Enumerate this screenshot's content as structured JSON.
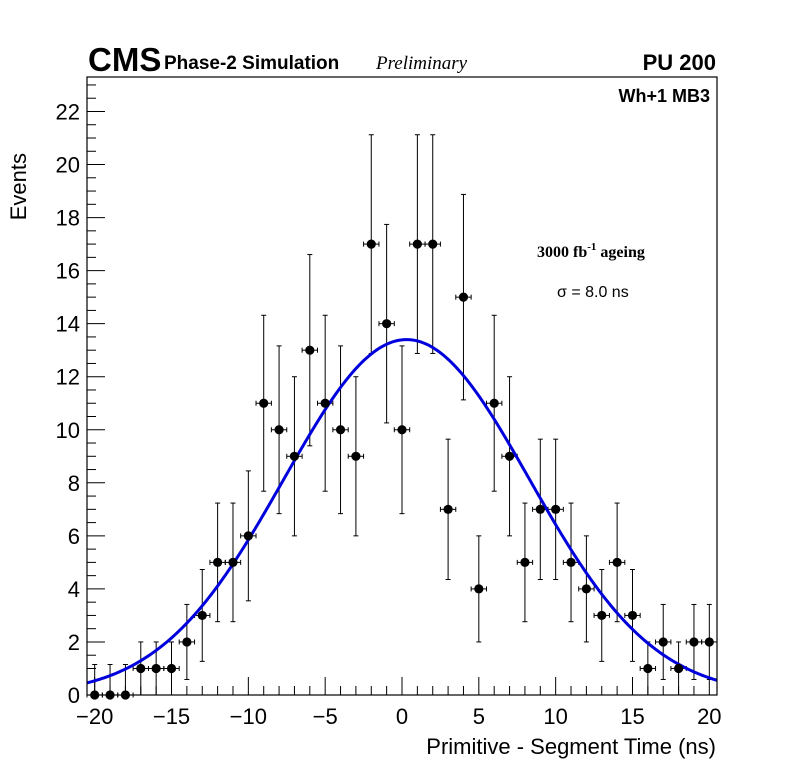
{
  "header": {
    "experiment": "CMS",
    "status": "Phase-2 Simulation",
    "preliminary": "Preliminary",
    "pileup": "PU 200"
  },
  "annotations": {
    "station": "Wh+1 MB3",
    "ageing_value": "3000 fb",
    "ageing_exponent": "-1",
    "ageing_suffix": " ageing",
    "sigma": "σ = 8.0 ns"
  },
  "chart_data": {
    "type": "scatter",
    "title": "",
    "xlabel": "Primitive - Segment Time (ns)",
    "ylabel": "Events",
    "xlim": [
      -20.5,
      20.5
    ],
    "ylim": [
      0,
      23.3
    ],
    "x_ticks": [
      -20,
      -15,
      -10,
      -5,
      0,
      5,
      10,
      15,
      20
    ],
    "x_tick_labels": [
      "−20",
      "−15",
      "−10",
      "−5",
      "0",
      "5",
      "10",
      "15",
      "20"
    ],
    "y_ticks": [
      0,
      2,
      4,
      6,
      8,
      10,
      12,
      14,
      16,
      18,
      20,
      22
    ],
    "y_tick_labels": [
      "0",
      "2",
      "4",
      "6",
      "8",
      "10",
      "12",
      "14",
      "16",
      "18",
      "20",
      "22"
    ],
    "grid": false,
    "series": [
      {
        "name": "data",
        "x": [
          -20,
          -19,
          -18,
          -17,
          -16,
          -15,
          -14,
          -13,
          -12,
          -11,
          -10,
          -9,
          -8,
          -7,
          -6,
          -5,
          -4,
          -3,
          -2,
          -1,
          0,
          1,
          2,
          3,
          4,
          5,
          6,
          7,
          8,
          9,
          10,
          11,
          12,
          13,
          14,
          15,
          16,
          17,
          18,
          19,
          20
        ],
        "y": [
          0,
          0,
          0,
          1,
          1,
          1,
          2,
          3,
          5,
          5,
          6,
          11,
          10,
          9,
          13,
          11,
          10,
          9,
          17,
          14,
          10,
          17,
          17,
          7,
          15,
          4,
          11,
          9,
          5,
          7,
          7,
          5,
          4,
          3,
          5,
          3,
          1,
          2,
          1,
          2,
          2
        ],
        "x_error": 0.5
      },
      {
        "name": "gaussian fit",
        "type": "line",
        "amplitude": 13.4,
        "mean": 0.3,
        "sigma": 8.0,
        "color": "#0000dd"
      }
    ]
  }
}
